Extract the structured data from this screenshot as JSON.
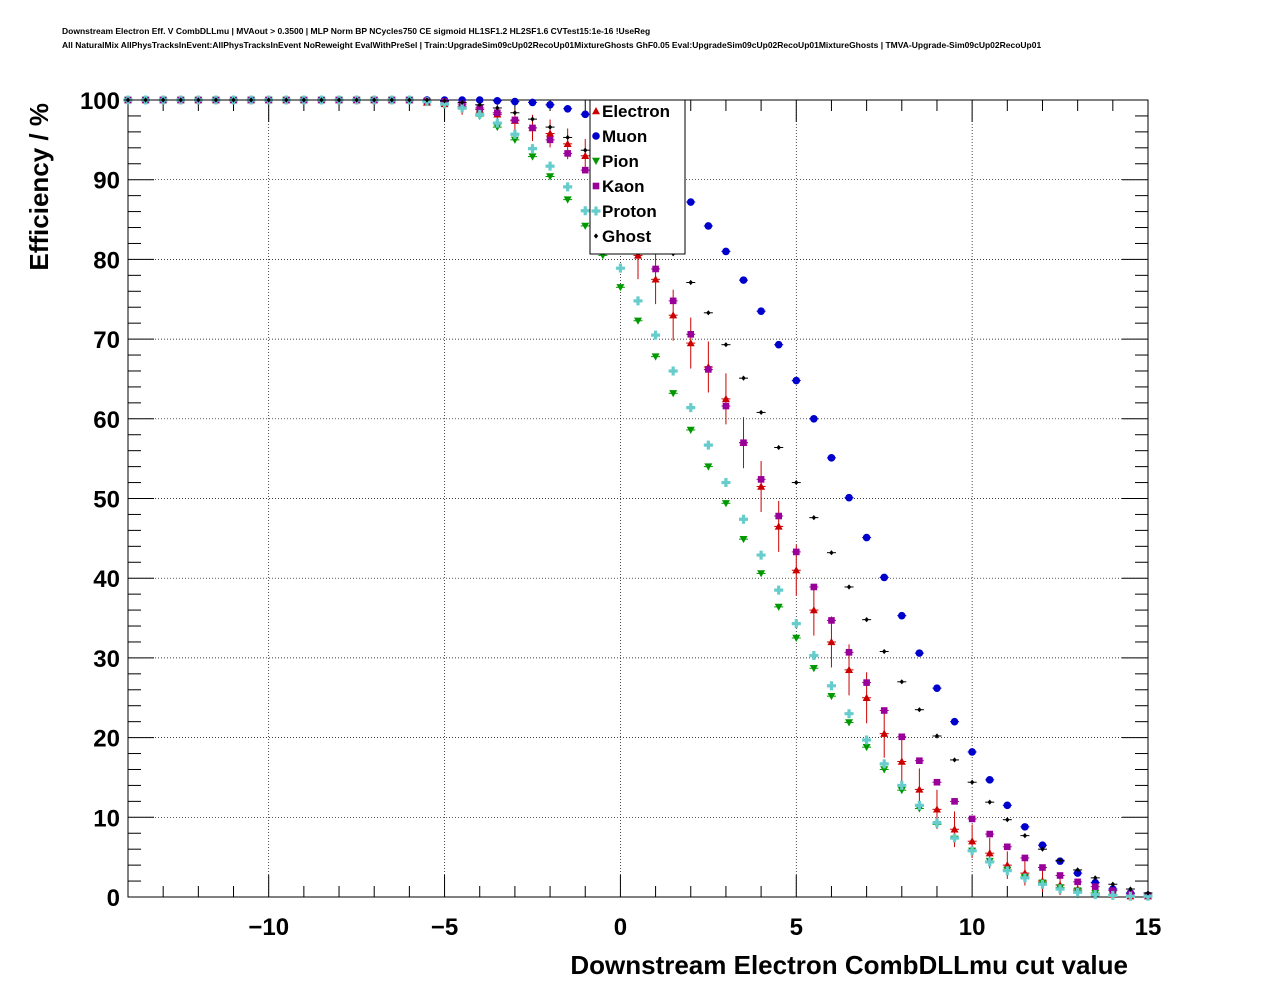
{
  "header": {
    "title_line1": "Downstream Electron Eff. V CombDLLmu | MVAout > 0.3500 | MLP Norm BP NCycles750 CE sigmoid HL1SF1.2 HL2SF1.6 CVTest15:1e-16 !UseReg",
    "title_line2": "All NaturalMix AllPhysTracksInEvent:AllPhysTracksInEvent NoReweight EvalWithPreSel | Train:UpgradeSim09cUp02RecoUp01MixtureGhosts GhF0.05 Eval:UpgradeSim09cUp02RecoUp01MixtureGhosts | TMVA-Upgrade-Sim09cUp02RecoUp01"
  },
  "chart_data": {
    "type": "scatter",
    "xlabel": "Downstream Electron CombDLLmu cut value",
    "ylabel": "Efficiency / %",
    "xlim": [
      -14,
      15
    ],
    "ylim": [
      0,
      100
    ],
    "xticks": [
      -10,
      -5,
      0,
      5,
      10,
      15
    ],
    "xtick_labels": [
      "−10",
      "−5",
      "0",
      "5",
      "10",
      "15"
    ],
    "yticks": [
      0,
      10,
      20,
      30,
      40,
      50,
      60,
      70,
      80,
      90,
      100
    ],
    "grid": true,
    "legend_position": "top-center",
    "x": [
      -14.0,
      -13.5,
      -13.0,
      -12.5,
      -12.0,
      -11.5,
      -11.0,
      -10.5,
      -10.0,
      -9.5,
      -9.0,
      -8.5,
      -8.0,
      -7.5,
      -7.0,
      -6.5,
      -6.0,
      -5.5,
      -5.0,
      -4.5,
      -4.0,
      -3.5,
      -3.0,
      -2.5,
      -2.0,
      -1.5,
      -1.0,
      -0.5,
      0.0,
      0.5,
      1.0,
      1.5,
      2.0,
      2.5,
      3.0,
      3.5,
      4.0,
      4.5,
      5.0,
      5.5,
      6.0,
      6.5,
      7.0,
      7.5,
      8.0,
      8.5,
      9.0,
      9.5,
      10.0,
      10.5,
      11.0,
      11.5,
      12.0,
      12.5,
      13.0,
      13.5,
      14.0,
      14.5,
      15.0
    ],
    "series": [
      {
        "name": "Electron",
        "color": "#cc0000",
        "marker": "triangle-up",
        "error_bars": true,
        "values": [
          100,
          100,
          100,
          100,
          100,
          100,
          100,
          100,
          100,
          100,
          100,
          100,
          100,
          100,
          100,
          100,
          100,
          99.7,
          99.5,
          99.2,
          98.8,
          98.2,
          97.4,
          96.5,
          95.8,
          94.5,
          93.0,
          90.5,
          86.5,
          80.5,
          77.5,
          73.0,
          69.5,
          66.5,
          62.5,
          57.0,
          51.5,
          46.5,
          41.0,
          36.0,
          32.0,
          28.5,
          25.0,
          20.5,
          17.0,
          13.5,
          11.0,
          8.5,
          7.0,
          5.5,
          4.0,
          3.0,
          2.0,
          1.5,
          1.0,
          0.5,
          0.3,
          0.1,
          0.1
        ]
      },
      {
        "name": "Muon",
        "color": "#0000cc",
        "marker": "circle",
        "error_bars": false,
        "values": [
          100,
          100,
          100,
          100,
          100,
          100,
          100,
          100,
          100,
          100,
          100,
          100,
          100,
          100,
          100,
          100,
          100,
          100,
          100,
          100,
          100,
          99.9,
          99.8,
          99.7,
          99.4,
          98.9,
          98.2,
          97.3,
          96.0,
          94.3,
          92.3,
          89.9,
          87.2,
          84.2,
          81.0,
          77.4,
          73.5,
          69.3,
          64.8,
          60.0,
          55.1,
          50.1,
          45.1,
          40.1,
          35.3,
          30.6,
          26.2,
          22.0,
          18.2,
          14.7,
          11.5,
          8.8,
          6.5,
          4.5,
          3.0,
          1.8,
          1.0,
          0.5,
          0.2
        ]
      },
      {
        "name": "Pion",
        "color": "#009900",
        "marker": "triangle-down",
        "error_bars": false,
        "values": [
          100,
          100,
          100,
          100,
          100,
          100,
          100,
          100,
          100,
          100,
          100,
          100,
          100,
          100,
          100,
          100,
          100,
          99.8,
          99.5,
          99.0,
          98.0,
          96.6,
          95.0,
          92.9,
          90.4,
          87.5,
          84.2,
          80.5,
          76.5,
          72.3,
          67.8,
          63.2,
          58.6,
          54.0,
          49.4,
          44.9,
          40.6,
          36.4,
          32.5,
          28.7,
          25.2,
          21.9,
          18.8,
          16.0,
          13.4,
          11.1,
          9.1,
          7.3,
          5.8,
          4.5,
          3.4,
          2.5,
          1.8,
          1.2,
          0.8,
          0.5,
          0.3,
          0.1,
          0.1
        ]
      },
      {
        "name": "Kaon",
        "color": "#990099",
        "marker": "square",
        "error_bars": false,
        "values": [
          100,
          100,
          100,
          100,
          100,
          100,
          100,
          100,
          100,
          100,
          100,
          100,
          100,
          100,
          100,
          100,
          100,
          99.9,
          99.8,
          99.5,
          99.0,
          98.4,
          97.5,
          96.5,
          95.0,
          93.3,
          91.2,
          88.7,
          85.8,
          82.5,
          78.8,
          74.8,
          70.6,
          66.2,
          61.6,
          57.0,
          52.4,
          47.8,
          43.3,
          38.9,
          34.7,
          30.7,
          26.9,
          23.4,
          20.1,
          17.1,
          14.4,
          12.0,
          9.8,
          7.9,
          6.3,
          4.9,
          3.7,
          2.7,
          1.9,
          1.3,
          0.8,
          0.4,
          0.2
        ]
      },
      {
        "name": "Proton",
        "color": "#66cccc",
        "marker": "cross",
        "error_bars": false,
        "values": [
          100,
          100,
          100,
          100,
          100,
          100,
          100,
          100,
          100,
          100,
          100,
          100,
          100,
          100,
          100,
          100,
          100,
          99.8,
          99.5,
          99.0,
          98.2,
          97.1,
          95.7,
          93.9,
          91.7,
          89.1,
          86.1,
          82.7,
          78.9,
          74.8,
          70.5,
          66.0,
          61.4,
          56.7,
          52.0,
          47.4,
          42.9,
          38.5,
          34.3,
          30.3,
          26.5,
          23.0,
          19.7,
          16.7,
          14.0,
          11.5,
          9.3,
          7.4,
          5.8,
          4.4,
          3.3,
          2.4,
          1.6,
          1.0,
          0.6,
          0.3,
          0.2,
          0.1,
          0.1
        ]
      },
      {
        "name": "Ghost",
        "color": "#000000",
        "marker": "small-diamond",
        "error_bars": false,
        "values": [
          100,
          100,
          100,
          100,
          100,
          100,
          100,
          100,
          100,
          100,
          100,
          100,
          100,
          100,
          100,
          100,
          100,
          100,
          99.9,
          99.7,
          99.4,
          99.0,
          98.4,
          97.6,
          96.6,
          95.3,
          93.7,
          91.8,
          89.5,
          86.9,
          84.0,
          80.7,
          77.1,
          73.3,
          69.3,
          65.1,
          60.8,
          56.4,
          52.0,
          47.6,
          43.2,
          38.9,
          34.8,
          30.8,
          27.0,
          23.5,
          20.2,
          17.2,
          14.4,
          11.9,
          9.7,
          7.7,
          6.0,
          4.6,
          3.4,
          2.4,
          1.6,
          1.0,
          0.5
        ]
      }
    ]
  }
}
